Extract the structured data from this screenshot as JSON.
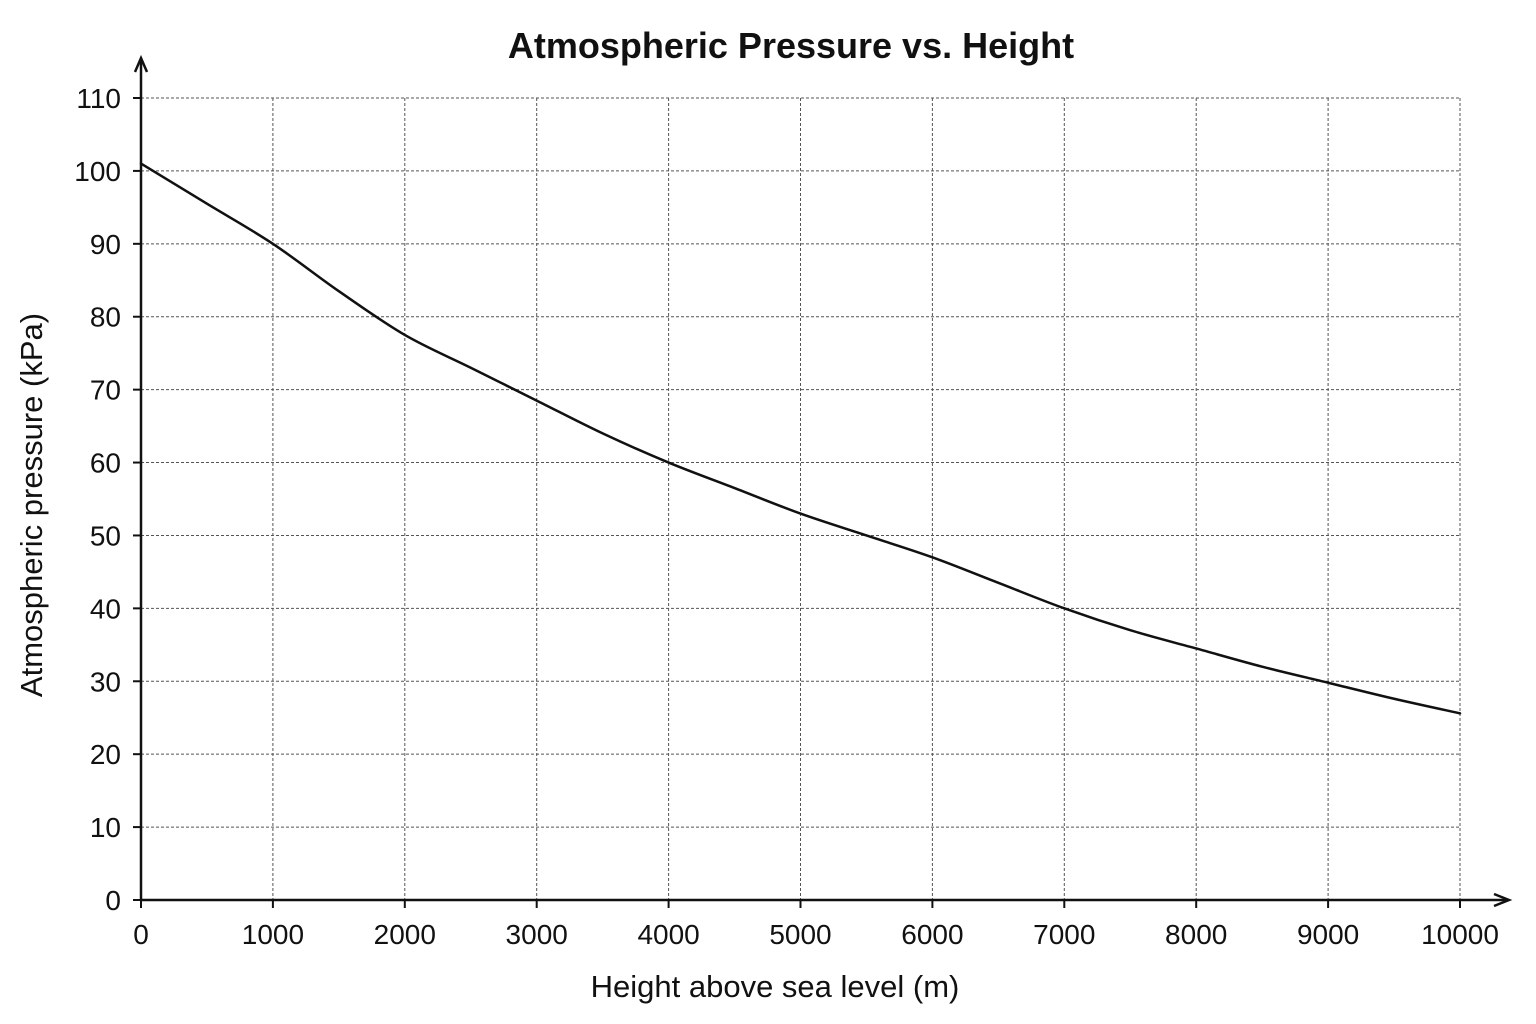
{
  "chart_data": {
    "type": "line",
    "title": "Atmospheric Pressure vs. Height",
    "xlabel": "Height above sea level (m)",
    "ylabel": "Atmospheric pressure (kPa)",
    "xlim": [
      0,
      10000
    ],
    "ylim": [
      0,
      110
    ],
    "x_ticks": [
      0,
      1000,
      2000,
      3000,
      4000,
      5000,
      6000,
      7000,
      8000,
      9000,
      10000
    ],
    "y_ticks": [
      0,
      10,
      20,
      30,
      40,
      50,
      60,
      70,
      80,
      90,
      100,
      110
    ],
    "grid": true,
    "legend": "none",
    "series": [
      {
        "x": [
          0,
          500,
          1000,
          1500,
          2000,
          2500,
          3000,
          3500,
          4000,
          4500,
          5000,
          5500,
          6000,
          6500,
          7000,
          7500,
          8000,
          8500,
          9000,
          9500,
          10000
        ],
        "values": [
          101,
          95.5,
          90,
          83.5,
          77.5,
          73,
          68.5,
          64,
          60,
          56.5,
          53,
          50,
          47,
          43.5,
          40,
          37,
          34.5,
          32,
          29.8,
          27.6,
          25.6
        ]
      }
    ]
  }
}
